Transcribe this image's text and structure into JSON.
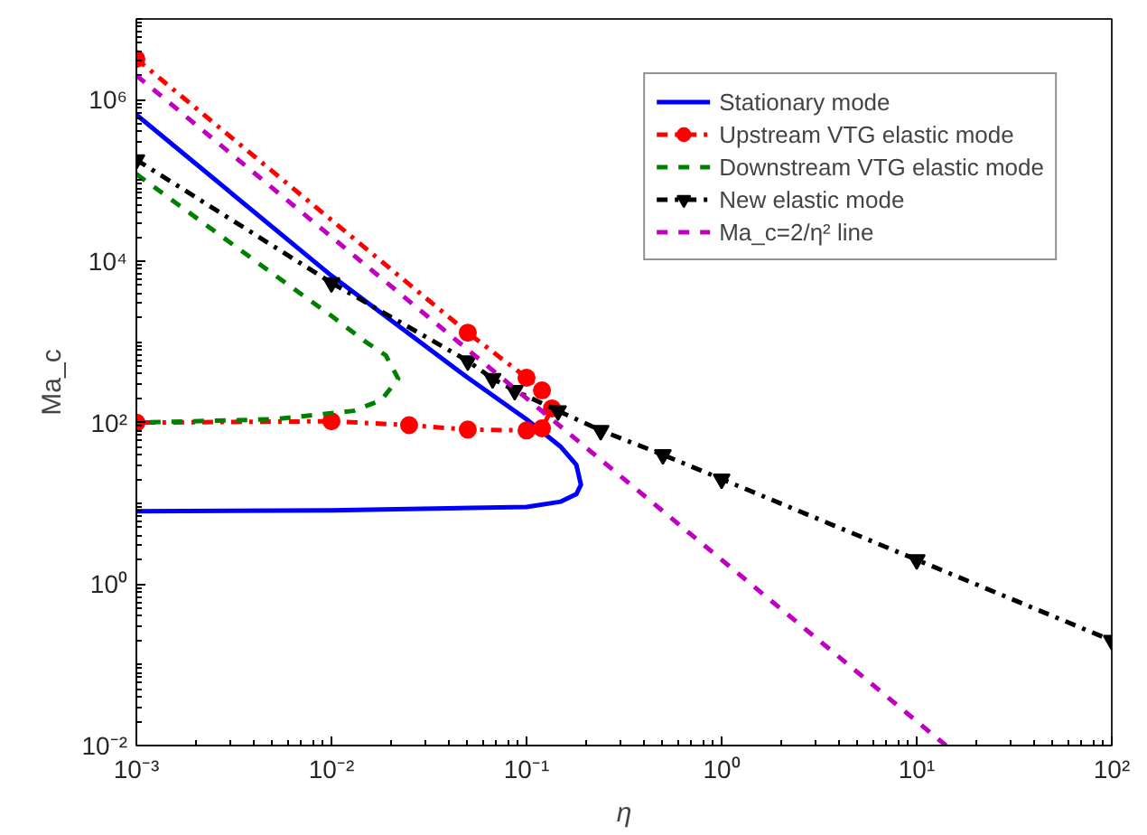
{
  "chart_data": {
    "type": "line",
    "xlabel": "η",
    "ylabel": "Ma_c",
    "log": "xy",
    "grid": false,
    "legend": "top right",
    "xlim": [
      0.001,
      100
    ],
    "ylim": [
      0.01,
      10000000
    ],
    "xticks": [
      {
        "value": 0.001,
        "label": "10⁻³"
      },
      {
        "value": 0.01,
        "label": "10⁻²"
      },
      {
        "value": 0.1,
        "label": "10⁻¹"
      },
      {
        "value": 1,
        "label": "10⁰"
      },
      {
        "value": 10,
        "label": "10¹"
      },
      {
        "value": 100,
        "label": "10²"
      }
    ],
    "yticks": [
      {
        "value": 0.01,
        "label": "10⁻²"
      },
      {
        "value": 1,
        "label": "10⁰"
      },
      {
        "value": 100,
        "label": "10²"
      },
      {
        "value": 10000,
        "label": "10⁴"
      },
      {
        "value": 1000000,
        "label": "10⁶"
      }
    ],
    "series": [
      {
        "name": "Stationary mode",
        "color": "#0000ff",
        "line_style": "solid",
        "marker": "none",
        "x": [
          0.001,
          0.01,
          0.05,
          0.1,
          0.15,
          0.18,
          0.19,
          0.18,
          0.15,
          0.1,
          0.01,
          0.001
        ],
        "values": [
          650000,
          6600,
          360,
          110,
          50,
          30,
          17,
          13,
          10.5,
          9,
          8.2,
          8
        ]
      },
      {
        "name": "Upstream VTG elastic mode",
        "color": "#ff0000",
        "line_style": "dashdot",
        "marker": "circle",
        "x": [
          0.001,
          0.05,
          0.1,
          0.12,
          0.135,
          0.12,
          0.1,
          0.05,
          0.025,
          0.01,
          0.001
        ],
        "values": [
          3200000,
          1300,
          360,
          250,
          150,
          85,
          80,
          82,
          93,
          104,
          100
        ]
      },
      {
        "name": "Downstream VTG elastic mode",
        "color": "#008000",
        "line_style": "dashed",
        "marker": "none",
        "x": [
          0.001,
          0.005,
          0.01,
          0.015,
          0.019,
          0.022,
          0.018,
          0.013,
          0.005,
          0.001
        ],
        "values": [
          120000,
          7000,
          2100,
          1000,
          680,
          350,
          190,
          140,
          110,
          100
        ]
      },
      {
        "name": "New elastic mode",
        "color": "#000000",
        "line_style": "dashdot",
        "marker": "triangle",
        "x": [
          0.001,
          0.01,
          0.05,
          0.067,
          0.087,
          0.145,
          0.24,
          0.5,
          1,
          10,
          100
        ],
        "values": [
          180000,
          5400,
          580,
          350,
          250,
          140,
          80,
          40,
          20,
          2,
          0.2
        ]
      },
      {
        "name": "Ma_c=2/η² line",
        "color": "#c000c0",
        "line_style": "dashed",
        "marker": "none",
        "x": [
          0.001,
          14.14
        ],
        "values": [
          2000000,
          0.01
        ]
      }
    ]
  }
}
